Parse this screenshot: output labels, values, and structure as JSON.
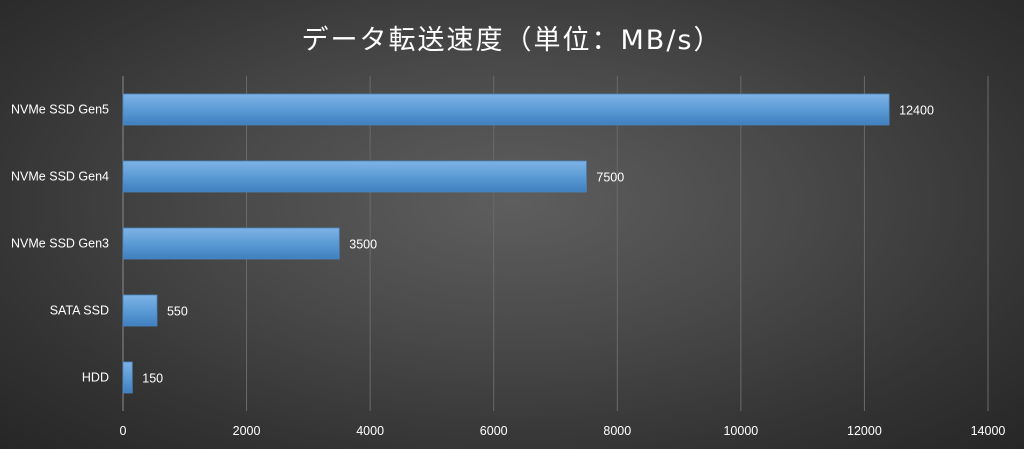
{
  "chart_data": {
    "type": "bar",
    "orientation": "horizontal",
    "title": "データ転送速度（単位：MB/s）",
    "categories": [
      "NVMe SSD Gen5",
      "NVMe SSD Gen4",
      "NVMe SSD Gen3",
      "SATA SSD",
      "HDD"
    ],
    "values": [
      12400,
      7500,
      3500,
      550,
      150
    ],
    "xlim": [
      0,
      14000
    ],
    "xticks": [
      0,
      2000,
      4000,
      6000,
      8000,
      10000,
      12000,
      14000
    ],
    "xlabel": "",
    "ylabel": "",
    "grid": "vertical",
    "legend": "none",
    "colors": {
      "bar": "#5b9bd5",
      "bar_light": "#7fb3e6",
      "bar_dark": "#3f7fbf",
      "text": "#ffffff",
      "grid": "#6a6a6a",
      "axis": "#8a8a8a"
    }
  }
}
